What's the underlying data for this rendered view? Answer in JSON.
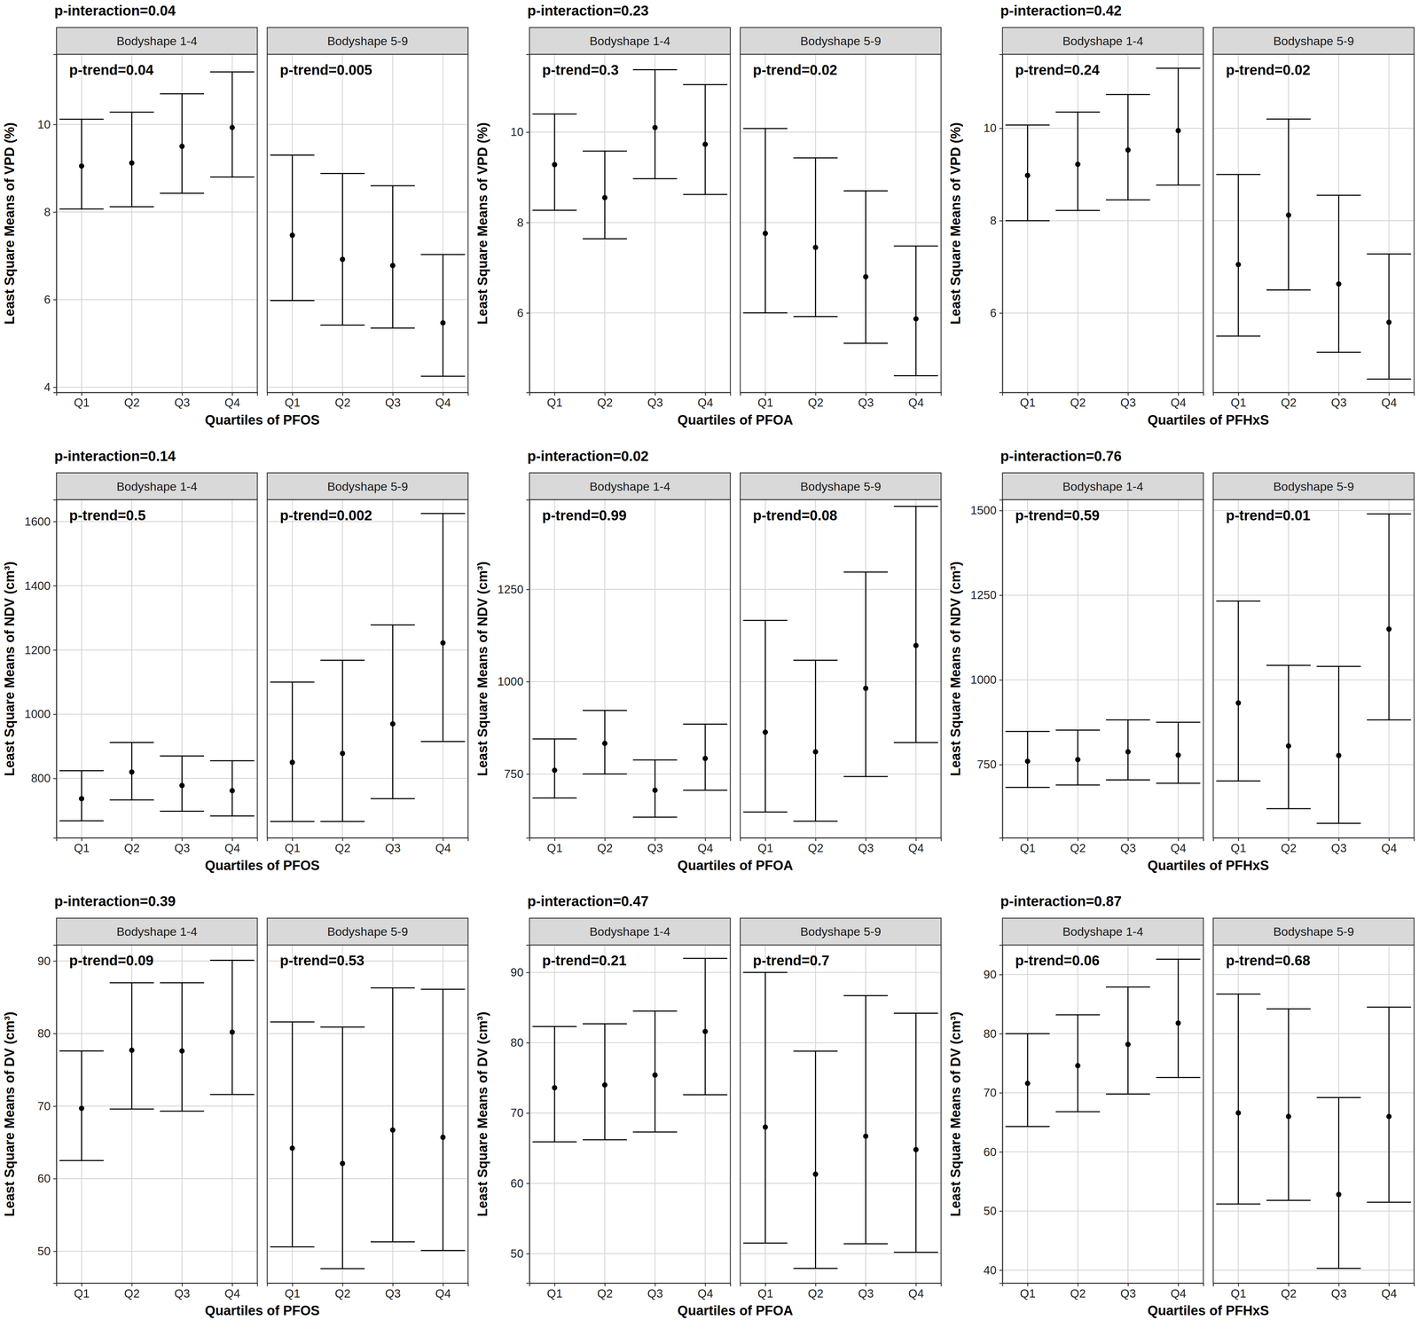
{
  "chart_data": [
    {
      "type": "errorbar",
      "title": "p-interaction=0.04",
      "x_label": "Quartiles of PFOS",
      "y_label": "Least Square Means of VPD (%)",
      "categories": [
        "Q1",
        "Q2",
        "Q3",
        "Q4"
      ],
      "ylim": [
        3.88,
        11.6
      ],
      "yticks": [
        4,
        6,
        8,
        10
      ],
      "grid": true,
      "color": "#000000",
      "marker": "circle",
      "series": [
        {
          "name": "Bodyshape 1-4",
          "annotation": "p-trend=0.04",
          "values": [
            9.05,
            9.12,
            9.5,
            9.93
          ],
          "lower": [
            8.07,
            8.12,
            8.43,
            8.8
          ],
          "upper": [
            10.12,
            10.28,
            10.7,
            11.2
          ]
        },
        {
          "name": "Bodyshape 5-9",
          "annotation": "p-trend=0.005",
          "values": [
            7.47,
            6.92,
            6.78,
            5.47
          ],
          "lower": [
            5.98,
            5.42,
            5.35,
            4.25
          ],
          "upper": [
            9.3,
            8.88,
            8.6,
            7.03
          ]
        }
      ]
    },
    {
      "type": "errorbar",
      "title": "p-interaction=0.23",
      "x_label": "Quartiles of PFOA",
      "y_label": "Least Square Means of VPD (%)",
      "categories": [
        "Q1",
        "Q2",
        "Q3",
        "Q4"
      ],
      "ylim": [
        4.24,
        11.72
      ],
      "yticks": [
        6,
        8,
        10
      ],
      "grid": true,
      "color": "#000000",
      "marker": "circle",
      "series": [
        {
          "name": "Bodyshape 1-4",
          "annotation": "p-trend=0.3",
          "values": [
            9.28,
            8.55,
            10.1,
            9.73
          ],
          "lower": [
            8.27,
            7.64,
            8.97,
            8.62
          ],
          "upper": [
            10.4,
            9.58,
            11.38,
            11.05
          ]
        },
        {
          "name": "Bodyshape 5-9",
          "annotation": "p-trend=0.02",
          "values": [
            7.76,
            7.45,
            6.8,
            5.87
          ],
          "lower": [
            6.0,
            5.92,
            5.33,
            4.61
          ],
          "upper": [
            10.08,
            9.43,
            8.7,
            7.48
          ]
        }
      ]
    },
    {
      "type": "errorbar",
      "title": "p-interaction=0.42",
      "x_label": "Quartiles of PFHxS",
      "y_label": "Least Square Means of VPD (%)",
      "categories": [
        "Q1",
        "Q2",
        "Q3",
        "Q4"
      ],
      "ylim": [
        4.28,
        11.6
      ],
      "yticks": [
        6,
        8,
        10
      ],
      "grid": true,
      "color": "#000000",
      "marker": "circle",
      "series": [
        {
          "name": "Bodyshape 1-4",
          "annotation": "p-trend=0.24",
          "values": [
            8.98,
            9.22,
            9.53,
            9.95
          ],
          "lower": [
            8.0,
            8.22,
            8.45,
            8.77
          ],
          "upper": [
            10.07,
            10.35,
            10.73,
            11.3
          ]
        },
        {
          "name": "Bodyshape 5-9",
          "annotation": "p-trend=0.02",
          "values": [
            7.05,
            8.12,
            6.63,
            5.8
          ],
          "lower": [
            5.5,
            6.5,
            5.15,
            4.57
          ],
          "upper": [
            9.0,
            10.2,
            8.55,
            7.28
          ]
        }
      ]
    },
    {
      "type": "errorbar",
      "title": "p-interaction=0.14",
      "x_label": "Quartiles of PFOS",
      "y_label": "Least Square Means of NDV (cm³)",
      "categories": [
        "Q1",
        "Q2",
        "Q3",
        "Q4"
      ],
      "ylim": [
        615,
        1668
      ],
      "yticks": [
        800,
        1000,
        1200,
        1400,
        1600
      ],
      "grid": true,
      "color": "#000000",
      "marker": "circle",
      "series": [
        {
          "name": "Bodyshape 1-4",
          "annotation": "p-trend=0.5",
          "values": [
            737,
            820,
            778,
            762
          ],
          "lower": [
            668,
            733,
            698,
            683
          ],
          "upper": [
            824,
            912,
            870,
            855
          ]
        },
        {
          "name": "Bodyshape 5-9",
          "annotation": "p-trend=0.002",
          "values": [
            850,
            878,
            970,
            1222
          ],
          "lower": [
            666,
            666,
            737,
            915
          ],
          "upper": [
            1100,
            1168,
            1278,
            1625
          ]
        }
      ]
    },
    {
      "type": "errorbar",
      "title": "p-interaction=0.02",
      "x_label": "Quartiles of PFOA",
      "y_label": "Least Square Means of NDV (cm³)",
      "categories": [
        "Q1",
        "Q2",
        "Q3",
        "Q4"
      ],
      "ylim": [
        577,
        1493
      ],
      "yticks": [
        750,
        1000,
        1250
      ],
      "grid": true,
      "color": "#000000",
      "marker": "circle",
      "series": [
        {
          "name": "Bodyshape 1-4",
          "annotation": "p-trend=0.99",
          "values": [
            760,
            833,
            706,
            792
          ],
          "lower": [
            685,
            750,
            633,
            706
          ],
          "upper": [
            845,
            922,
            788,
            885
          ]
        },
        {
          "name": "Bodyshape 5-9",
          "annotation": "p-trend=0.08",
          "values": [
            863,
            810,
            982,
            1098
          ],
          "lower": [
            647,
            622,
            743,
            835
          ],
          "upper": [
            1166,
            1058,
            1297,
            1475
          ]
        }
      ]
    },
    {
      "type": "errorbar",
      "title": "p-interaction=0.76",
      "x_label": "Quartiles of PFHxS",
      "y_label": "Least Square Means of NDV (cm³)",
      "categories": [
        "Q1",
        "Q2",
        "Q3",
        "Q4"
      ],
      "ylim": [
        534,
        1532
      ],
      "yticks": [
        750,
        1000,
        1250,
        1500
      ],
      "grid": true,
      "color": "#000000",
      "marker": "circle",
      "series": [
        {
          "name": "Bodyshape 1-4",
          "annotation": "p-trend=0.59",
          "values": [
            760,
            765,
            788,
            778
          ],
          "lower": [
            683,
            690,
            705,
            695
          ],
          "upper": [
            848,
            852,
            882,
            875
          ]
        },
        {
          "name": "Bodyshape 5-9",
          "annotation": "p-trend=0.01",
          "values": [
            932,
            805,
            777,
            1150
          ],
          "lower": [
            702,
            620,
            577,
            882
          ],
          "upper": [
            1233,
            1043,
            1040,
            1490
          ]
        }
      ]
    },
    {
      "type": "errorbar",
      "title": "p-interaction=0.39",
      "x_label": "Quartiles of PFOS",
      "y_label": "Least Square Means of DV (cm³)",
      "categories": [
        "Q1",
        "Q2",
        "Q3",
        "Q4"
      ],
      "ylim": [
        45.6,
        92.2
      ],
      "yticks": [
        50,
        60,
        70,
        80,
        90
      ],
      "grid": true,
      "color": "#000000",
      "marker": "circle",
      "series": [
        {
          "name": "Bodyshape 1-4",
          "annotation": "p-trend=0.09",
          "values": [
            69.7,
            77.7,
            77.6,
            80.2
          ],
          "lower": [
            62.5,
            69.6,
            69.3,
            71.6
          ],
          "upper": [
            77.6,
            87.0,
            87.0,
            90.1
          ]
        },
        {
          "name": "Bodyshape 5-9",
          "annotation": "p-trend=0.53",
          "values": [
            64.2,
            62.1,
            66.7,
            65.7
          ],
          "lower": [
            50.6,
            47.6,
            51.3,
            50.1
          ],
          "upper": [
            81.6,
            80.9,
            86.3,
            86.1
          ]
        }
      ]
    },
    {
      "type": "errorbar",
      "title": "p-interaction=0.47",
      "x_label": "Quartiles of PFOA",
      "y_label": "Least Square Means of DV (cm³)",
      "categories": [
        "Q1",
        "Q2",
        "Q3",
        "Q4"
      ],
      "ylim": [
        45.8,
        93.9
      ],
      "yticks": [
        50,
        60,
        70,
        80,
        90
      ],
      "grid": true,
      "color": "#000000",
      "marker": "circle",
      "series": [
        {
          "name": "Bodyshape 1-4",
          "annotation": "p-trend=0.21",
          "values": [
            73.6,
            74.0,
            75.4,
            81.6
          ],
          "lower": [
            65.9,
            66.2,
            67.3,
            72.6
          ],
          "upper": [
            82.3,
            82.7,
            84.5,
            92.0
          ]
        },
        {
          "name": "Bodyshape 5-9",
          "annotation": "p-trend=0.7",
          "values": [
            68.0,
            61.3,
            66.7,
            64.8
          ],
          "lower": [
            51.5,
            47.9,
            51.4,
            50.2
          ],
          "upper": [
            90.0,
            78.8,
            86.7,
            84.2
          ]
        }
      ]
    },
    {
      "type": "errorbar",
      "title": "p-interaction=0.87",
      "x_label": "Quartiles of PFHxS",
      "y_label": "Least Square Means of DV (cm³)",
      "categories": [
        "Q1",
        "Q2",
        "Q3",
        "Q4"
      ],
      "ylim": [
        37.8,
        95
      ],
      "yticks": [
        40,
        50,
        60,
        70,
        80,
        90
      ],
      "grid": true,
      "color": "#000000",
      "marker": "circle",
      "series": [
        {
          "name": "Bodyshape 1-4",
          "annotation": "p-trend=0.06",
          "values": [
            71.6,
            74.6,
            78.2,
            81.8
          ],
          "lower": [
            64.3,
            66.8,
            69.8,
            72.6
          ],
          "upper": [
            80.0,
            83.2,
            87.9,
            92.6
          ]
        },
        {
          "name": "Bodyshape 5-9",
          "annotation": "p-trend=0.68",
          "values": [
            66.6,
            66.0,
            52.8,
            66.0
          ],
          "lower": [
            51.2,
            51.8,
            40.3,
            51.5
          ],
          "upper": [
            86.7,
            84.2,
            69.2,
            84.5
          ]
        }
      ]
    }
  ]
}
